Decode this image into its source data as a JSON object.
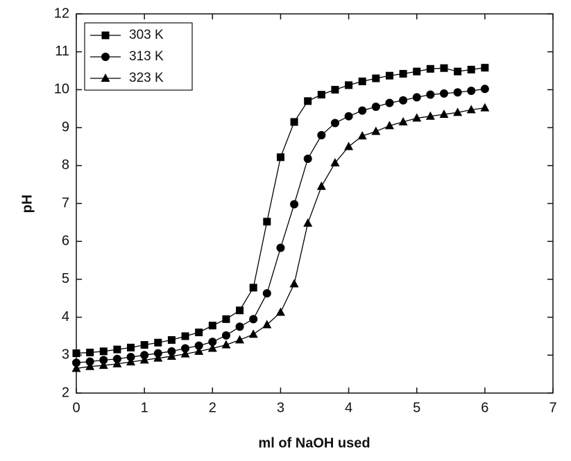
{
  "chart_data": {
    "type": "line",
    "x_label": "ml of NaOH used",
    "y_label": "pH",
    "x": [
      0,
      0.2,
      0.4,
      0.6,
      0.8,
      1.0,
      1.2,
      1.4,
      1.6,
      1.8,
      2.0,
      2.2,
      2.4,
      2.6,
      2.8,
      3.0,
      3.2,
      3.4,
      3.6,
      3.8,
      4.0,
      4.2,
      4.4,
      4.6,
      4.8,
      5.0,
      5.2,
      5.4,
      5.6,
      5.8,
      6.0
    ],
    "series": [
      {
        "name": "303 K",
        "color": "#000000",
        "marker": "square",
        "values": [
          3.05,
          3.07,
          3.1,
          3.15,
          3.2,
          3.27,
          3.33,
          3.4,
          3.5,
          3.6,
          3.78,
          3.95,
          4.18,
          4.78,
          6.52,
          8.22,
          9.15,
          9.7,
          9.87,
          10.0,
          10.12,
          10.22,
          10.3,
          10.37,
          10.42,
          10.48,
          10.55,
          10.57,
          10.48,
          10.53,
          10.58
        ]
      },
      {
        "name": "313 K",
        "color": "#000000",
        "marker": "circle",
        "values": [
          2.8,
          2.83,
          2.87,
          2.9,
          2.95,
          3.0,
          3.05,
          3.1,
          3.18,
          3.25,
          3.35,
          3.52,
          3.75,
          3.95,
          4.63,
          5.83,
          6.98,
          8.18,
          8.8,
          9.12,
          9.3,
          9.45,
          9.55,
          9.65,
          9.72,
          9.8,
          9.87,
          9.9,
          9.93,
          9.97,
          10.02
        ]
      },
      {
        "name": "323 K",
        "color": "#000000",
        "marker": "triangle",
        "values": [
          2.65,
          2.7,
          2.73,
          2.77,
          2.82,
          2.87,
          2.92,
          2.97,
          3.03,
          3.1,
          3.18,
          3.27,
          3.4,
          3.55,
          3.8,
          4.13,
          4.88,
          6.48,
          7.45,
          8.07,
          8.5,
          8.78,
          8.9,
          9.05,
          9.15,
          9.25,
          9.3,
          9.35,
          9.4,
          9.47,
          9.52
        ]
      }
    ],
    "xlim": [
      0,
      7
    ],
    "ylim": [
      2,
      12
    ],
    "xticks": [
      0,
      1,
      2,
      3,
      4,
      5,
      6,
      7
    ],
    "yticks": [
      2,
      3,
      4,
      5,
      6,
      7,
      8,
      9,
      10,
      11,
      12
    ],
    "grid": false,
    "legend": "top-left"
  }
}
